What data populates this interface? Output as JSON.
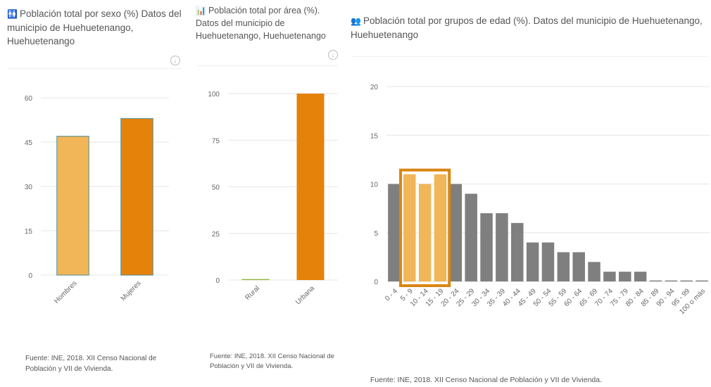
{
  "charts": [
    {
      "icon": "people-icon",
      "title": "Población total por sexo (%) Datos del municipio de Huehuetenango, Huehuetenango",
      "source": "Fuente: INE, 2018. XII Censo Nacional de Población y VII de Vivienda."
    },
    {
      "icon": "bar-chart-icon",
      "title": "Población total por área (%). Datos del municipio de Huehuetenango, Huehuetenango",
      "source": "Fuente: INE, 2018. XII Censo Nacional de Población y VII de Vivienda."
    },
    {
      "icon": "group-icon",
      "title": "Población total por grupos de edad (%). Datos del municipio de Huehuetenango, Huehuetenango",
      "source": "Fuente: INE, 2018. XII Censo Nacional de Población y VII de Vivienda."
    }
  ],
  "chart_data": [
    {
      "type": "bar",
      "categories": [
        "Hombres",
        "Mujeres"
      ],
      "values": [
        47,
        53
      ],
      "colors": [
        "#F0B657",
        "#E5820A"
      ],
      "ylim": [
        0,
        60
      ],
      "yticks": [
        0,
        15,
        30,
        45,
        60
      ],
      "grid": true
    },
    {
      "type": "bar",
      "categories": [
        "Rural",
        "Urbana"
      ],
      "values": [
        0.5,
        100
      ],
      "colors": [
        "#8DB33A",
        "#E5820A"
      ],
      "ylim": [
        0,
        100
      ],
      "yticks": [
        0,
        25,
        50,
        75,
        100
      ],
      "grid": true
    },
    {
      "type": "bar",
      "categories": [
        "0 - 4",
        "5 - 9",
        "10 - 14",
        "15 - 19",
        "20 - 24",
        "25 - 29",
        "30 - 34",
        "35 - 39",
        "40 - 44",
        "45 - 49",
        "50 - 54",
        "55 - 59",
        "60 - 64",
        "65 - 69",
        "70 - 74",
        "75 - 79",
        "80 - 84",
        "85 - 89",
        "90 - 94",
        "95 - 99",
        "100 o más"
      ],
      "values": [
        10,
        11,
        10,
        11,
        10,
        9,
        7,
        7,
        6,
        4,
        4,
        3,
        3,
        2,
        1,
        1,
        1,
        0.1,
        0.1,
        0.1,
        0.1
      ],
      "highlight": [
        1,
        2,
        3
      ],
      "colors": {
        "default": "#7F7F7F",
        "highlight": "#F0B657",
        "frame": "#D98612"
      },
      "ylim": [
        0,
        20
      ],
      "yticks": [
        0,
        5,
        10,
        15,
        20
      ],
      "grid": true
    }
  ]
}
